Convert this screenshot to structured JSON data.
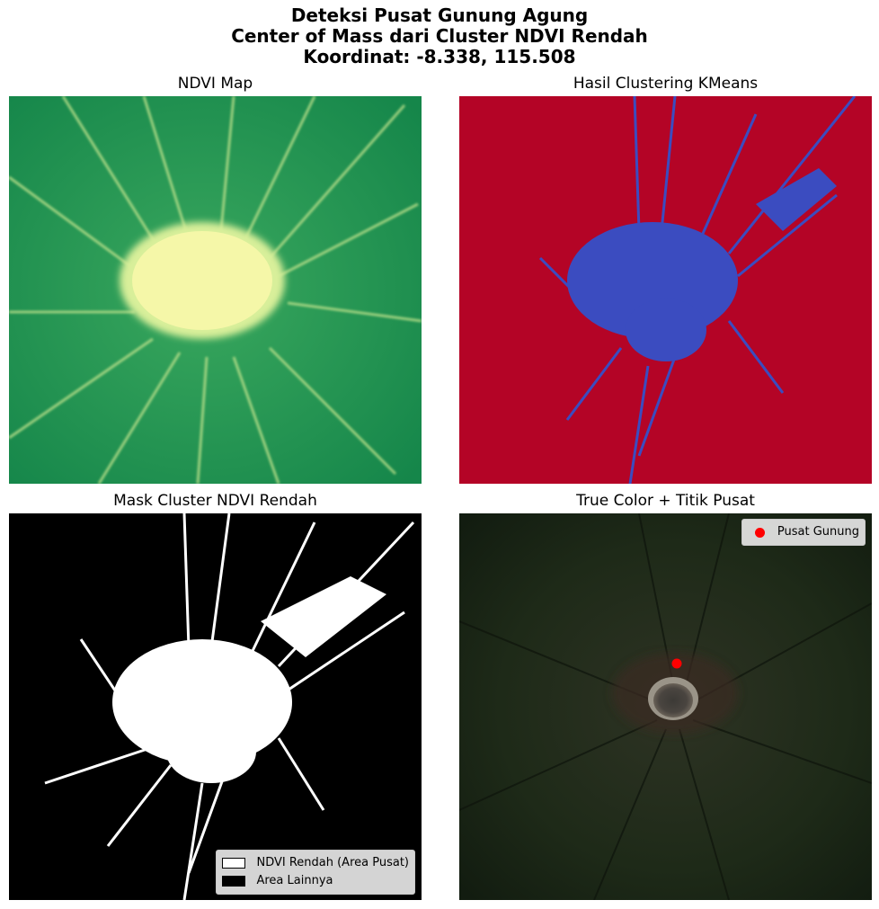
{
  "suptitle": {
    "line1": "Deteksi Pusat Gunung Agung",
    "line2": "Center of Mass dari Cluster NDVI Rendah",
    "line3": "Koordinat: -8.338, 115.508"
  },
  "panels": {
    "ndvi": {
      "title": "NDVI Map"
    },
    "kmeans": {
      "title": "Hasil Clustering KMeans"
    },
    "mask": {
      "title": "Mask Cluster NDVI Rendah",
      "legend": [
        {
          "label": "NDVI Rendah (Area Pusat)",
          "color": "#ffffff"
        },
        {
          "label": "Area Lainnya",
          "color": "#000000"
        }
      ]
    },
    "truecolor": {
      "title": "True Color + Titik Pusat",
      "legend": [
        {
          "label": "Pusat Gunung",
          "color": "#ff0000"
        }
      ]
    }
  },
  "colors": {
    "ndvi_high": "#1e9150",
    "ndvi_low": "#f5f7a8",
    "cluster_vegetation": "#b40426",
    "cluster_low_ndvi": "#3b4cc0",
    "mask_bg": "#000000",
    "mask_fg": "#ffffff",
    "center_marker": "#ff0000"
  }
}
